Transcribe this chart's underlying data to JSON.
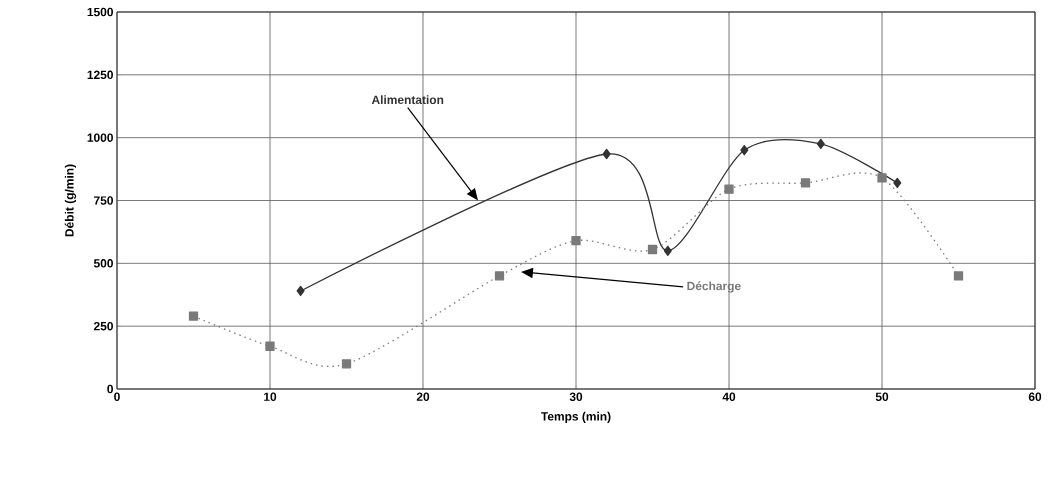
{
  "chart_data": {
    "type": "line",
    "xlabel": "Temps (min)",
    "ylabel": "Débit (g/min)",
    "xlim": [
      0,
      60
    ],
    "ylim": [
      0,
      1500
    ],
    "xticks": [
      0,
      10,
      20,
      30,
      40,
      50,
      60
    ],
    "yticks": [
      0,
      250,
      500,
      750,
      1000,
      1250,
      1500
    ],
    "grid": true,
    "series": [
      {
        "name": "Alimentation",
        "x": [
          12,
          32,
          36,
          41,
          46,
          51
        ],
        "values": [
          390,
          935,
          550,
          950,
          975,
          820
        ],
        "color": "#333333",
        "marker": "diamond",
        "line_style": "solid"
      },
      {
        "name": "Décharge",
        "x": [
          5,
          10,
          15,
          25,
          30,
          35,
          40,
          45,
          50,
          55
        ],
        "values": [
          290,
          170,
          100,
          450,
          590,
          555,
          795,
          820,
          840,
          450
        ],
        "color": "#7a7a7a",
        "marker": "square",
        "line_style": "dotted"
      }
    ]
  }
}
